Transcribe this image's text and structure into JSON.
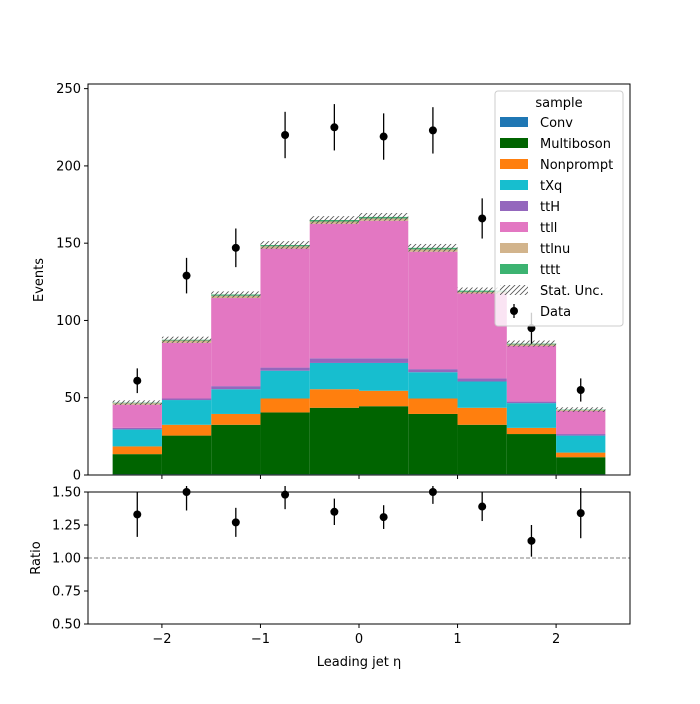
{
  "chart_data": {
    "type": "bar",
    "stacked": true,
    "x": [
      -2.25,
      -1.75,
      -1.25,
      -0.75,
      -0.25,
      0.25,
      0.75,
      1.25,
      1.75,
      2.25
    ],
    "bin_edges": [
      -2.5,
      -2.0,
      -1.5,
      -1.0,
      -0.5,
      0.0,
      0.5,
      1.0,
      1.5,
      2.0,
      2.5
    ],
    "series": [
      {
        "name": "Conv",
        "color": "#1f77b4",
        "values": [
          0.5,
          0.5,
          0.5,
          0.5,
          0.5,
          0.5,
          0.5,
          0.5,
          0.5,
          0.5
        ]
      },
      {
        "name": "Multiboson",
        "color": "#006400",
        "values": [
          13,
          25,
          32,
          40,
          43,
          44,
          39,
          32,
          26,
          11
        ]
      },
      {
        "name": "Nonprompt",
        "color": "#ff7f0e",
        "values": [
          5,
          7,
          7,
          9,
          12,
          10,
          10,
          11,
          4,
          3
        ]
      },
      {
        "name": "tXq",
        "color": "#17becf",
        "values": [
          11,
          16,
          16,
          18,
          17,
          18,
          17,
          17,
          16,
          11
        ]
      },
      {
        "name": "ttH",
        "color": "#9467bd",
        "values": [
          1,
          1,
          2,
          2,
          3,
          3,
          2,
          2,
          1,
          1
        ]
      },
      {
        "name": "ttll",
        "color": "#e377c2",
        "values": [
          15,
          36,
          57,
          77,
          87,
          89,
          76,
          55,
          36,
          15
        ]
      },
      {
        "name": "ttlnu",
        "color": "#d2b48c",
        "values": [
          1,
          1.5,
          1.5,
          1.5,
          1.5,
          1.5,
          1.5,
          1,
          1,
          0.5
        ]
      },
      {
        "name": "tttt",
        "color": "#3cb371",
        "values": [
          0.3,
          0.5,
          0.8,
          0.8,
          1,
          1,
          1,
          0.8,
          0.5,
          0.3
        ]
      }
    ],
    "data": {
      "name": "Data",
      "values": [
        61,
        129,
        147,
        220,
        225,
        219,
        223,
        166,
        95,
        55
      ],
      "errors": [
        8,
        11.5,
        12.5,
        15,
        15,
        15,
        15,
        13,
        10,
        7.5
      ]
    },
    "stat_unc": {
      "name": "Stat. Unc.",
      "values": [
        1.5,
        2,
        2,
        2.5,
        2.5,
        2.5,
        2.5,
        2,
        2,
        1.5
      ]
    },
    "ratio": {
      "values": [
        1.33,
        1.5,
        1.27,
        1.48,
        1.35,
        1.31,
        1.5,
        1.39,
        1.13,
        1.34
      ],
      "errors": [
        0.17,
        0.14,
        0.11,
        0.11,
        0.1,
        0.09,
        0.09,
        0.11,
        0.12,
        0.19
      ],
      "ylabel": "Ratio",
      "ylim": [
        0.5,
        1.5
      ],
      "yticks": [
        "0.50",
        "0.75",
        "1.00",
        "1.25",
        "1.50"
      ],
      "reference_line": 1.0
    },
    "xlabel": "Leading jet  η",
    "ylabel": "Events",
    "xlim": [
      -2.75,
      2.75
    ],
    "ylim": [
      0,
      253
    ],
    "xticks": [
      -2,
      -1,
      0,
      1,
      2
    ],
    "xtick_labels": [
      "−2",
      "−1",
      "0",
      "1",
      "2"
    ],
    "yticks": [
      0,
      50,
      100,
      150,
      200,
      250
    ],
    "legend_title": "sample",
    "legend_position": "upper right",
    "grid": false
  }
}
